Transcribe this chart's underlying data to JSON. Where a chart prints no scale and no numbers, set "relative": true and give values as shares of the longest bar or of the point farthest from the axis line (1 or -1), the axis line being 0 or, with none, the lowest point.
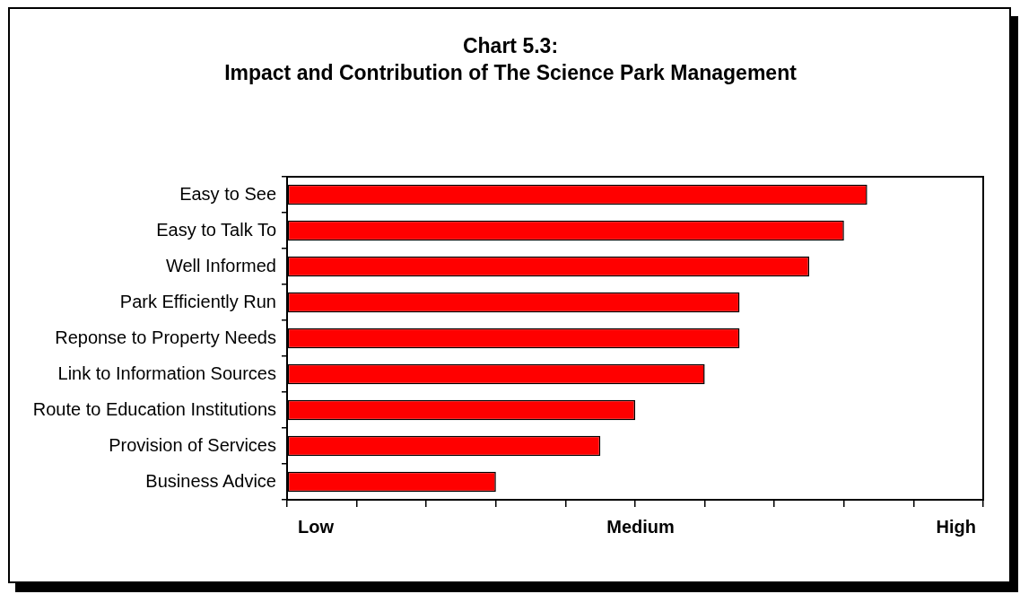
{
  "chart_data": {
    "type": "bar",
    "orientation": "horizontal",
    "relative": true,
    "title": "Chart 5.3:",
    "subtitle": "Impact and Contribution of The Science Park Management",
    "categories": [
      "Easy to See",
      "Easy to Talk To",
      "Well Informed",
      "Park Efficiently Run",
      "Reponse to Property Needs",
      "Link to Information Sources",
      "Route to Education Institutions",
      "Provision of Services",
      "Business Advice"
    ],
    "values": [
      1,
      0.96,
      0.9,
      0.78,
      0.78,
      0.72,
      0.6,
      0.54,
      0.36
    ],
    "color": "#ff0000",
    "annotations": [
      "Low",
      "Medium",
      "High"
    ],
    "grid": false,
    "legend": false
  }
}
